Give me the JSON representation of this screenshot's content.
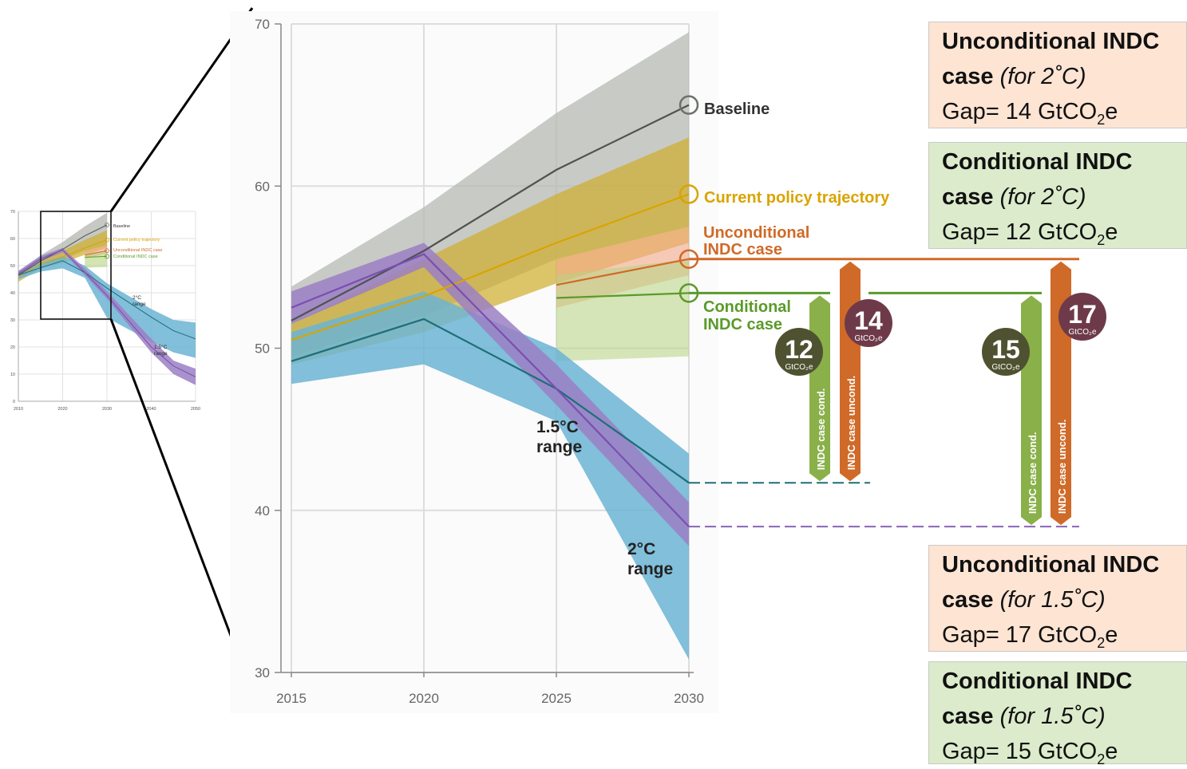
{
  "chart_data": {
    "type": "area",
    "xlim": [
      2015,
      2030
    ],
    "ylim": [
      30,
      70
    ],
    "x_ticks": [
      2015,
      2020,
      2025,
      2030
    ],
    "y_ticks": [
      30,
      40,
      50,
      60,
      70
    ],
    "grid": true,
    "series": [
      {
        "name": "Baseline",
        "color": "#8a9088",
        "band_color": "#b7bab4",
        "x": [
          2015,
          2020,
          2025,
          2030
        ],
        "values": [
          51.7,
          56,
          61,
          65
        ],
        "band_lower": [
          49.5,
          52,
          55.5,
          57.5
        ],
        "band_upper": [
          53.8,
          58.7,
          64.5,
          69.5
        ]
      },
      {
        "name": "Current policy trajectory",
        "color": "#d9a400",
        "band_color": "#cfae2b",
        "x": [
          2015,
          2020,
          2025,
          2030
        ],
        "values": [
          50.5,
          53.2,
          56.5,
          59.5
        ],
        "band_lower": [
          49,
          51,
          54,
          56.5
        ],
        "band_upper": [
          51.5,
          55.5,
          59.5,
          63
        ]
      },
      {
        "name": "Unconditional INDC case",
        "color": "#d06a28",
        "band_color": "#f4a888",
        "x": [
          2025,
          2030
        ],
        "values": [
          53.9,
          55.5
        ],
        "band_lower": [
          52.5,
          54.5
        ],
        "band_upper": [
          55.5,
          57.5
        ]
      },
      {
        "name": "Conditional INDC case",
        "color": "#5a9a2a",
        "band_color": "#b6d37f",
        "x": [
          2025,
          2030
        ],
        "values": [
          53.1,
          53.4
        ],
        "band_lower": [
          49.2,
          49.5
        ],
        "band_upper": [
          54.5,
          55.5
        ]
      },
      {
        "name": "2°C range",
        "color": "#1e6e78",
        "band_color": "#6bb4d4",
        "x": [
          2015,
          2020,
          2025,
          2030
        ],
        "values": [
          49.2,
          51.8,
          47.5,
          41.7
        ],
        "band_lower": [
          47.8,
          49,
          45.5,
          30.8
        ],
        "band_upper": [
          51,
          53.5,
          50,
          43.5
        ]
      },
      {
        "name": "1.5°C range",
        "color": "#8a63b8",
        "band_color": "#9b7fc4",
        "x": [
          2015,
          2020,
          2025,
          2030
        ],
        "values": [
          52.5,
          55.8,
          47.5,
          39
        ],
        "band_lower": [
          51.5,
          55,
          46.5,
          37.8
        ],
        "band_upper": [
          53.5,
          56.5,
          49,
          40.5
        ]
      }
    ],
    "labels": {
      "baseline": "Baseline",
      "current_policy": "Current policy trajectory",
      "unconditional_1": "Unconditional",
      "unconditional_2": "INDC case",
      "conditional_1": "Conditional",
      "conditional_2": "INDC case",
      "range_15_1": "1.5°C",
      "range_15_2": "range",
      "range_2_1": "2°C",
      "range_2_2": "range"
    },
    "gaps": [
      {
        "value": "12",
        "unit": "GtCO₂e",
        "bar_label": "INDC case cond.",
        "from": 53.4,
        "to": 41.7
      },
      {
        "value": "14",
        "unit": "GtCO₂e",
        "bar_label": "INDC case uncond.",
        "from": 55.5,
        "to": 41.7
      },
      {
        "value": "15",
        "unit": "GtCO₂e",
        "bar_label": "INDC case cond.",
        "from": 53.4,
        "to": 39
      },
      {
        "value": "17",
        "unit": "GtCO₂e",
        "bar_label": "INDC case uncond.",
        "from": 55.5,
        "to": 39
      }
    ],
    "inset": {
      "xlim": [
        2010,
        2050
      ],
      "ylim": [
        0,
        70
      ],
      "x_ticks": [
        2010,
        2020,
        2030,
        2040,
        2050
      ],
      "y_ticks": [
        0,
        10,
        20,
        30,
        40,
        50,
        60,
        70
      ],
      "labels": {
        "baseline": "Baseline",
        "current_policy": "Current policy trajectory",
        "unconditional": "Unconditional INDC case",
        "conditional": "Conditional INDC case",
        "range_2_1": "2°C",
        "range_2_2": "range",
        "range_15_1": "1.5°C",
        "range_15_2": "range"
      }
    }
  },
  "boxes": [
    {
      "type": "unconditional",
      "line1": "Unconditional INDC",
      "line2_bold": "case",
      "line2_italic": "(for 2˚C)",
      "gap_prefix": "Gap= 14 GtCO",
      "gap_sub": "2",
      "gap_suffix": "e"
    },
    {
      "type": "conditional",
      "line1": "Conditional INDC",
      "line2_bold": "case",
      "line2_italic": "(for 2˚C)",
      "gap_prefix": "Gap= 12 GtCO",
      "gap_sub": "2",
      "gap_suffix": "e"
    },
    {
      "type": "unconditional",
      "line1": "Unconditional INDC",
      "line2_bold": "case",
      "line2_italic": "(for 1.5˚C)",
      "gap_prefix": "Gap= 17 GtCO",
      "gap_sub": "2",
      "gap_suffix": "e"
    },
    {
      "type": "conditional",
      "line1": "Conditional INDC",
      "line2_bold": "case",
      "line2_italic": "(for 1.5˚C)",
      "gap_prefix": "Gap= 15 GtCO",
      "gap_sub": "2",
      "gap_suffix": "e"
    }
  ]
}
